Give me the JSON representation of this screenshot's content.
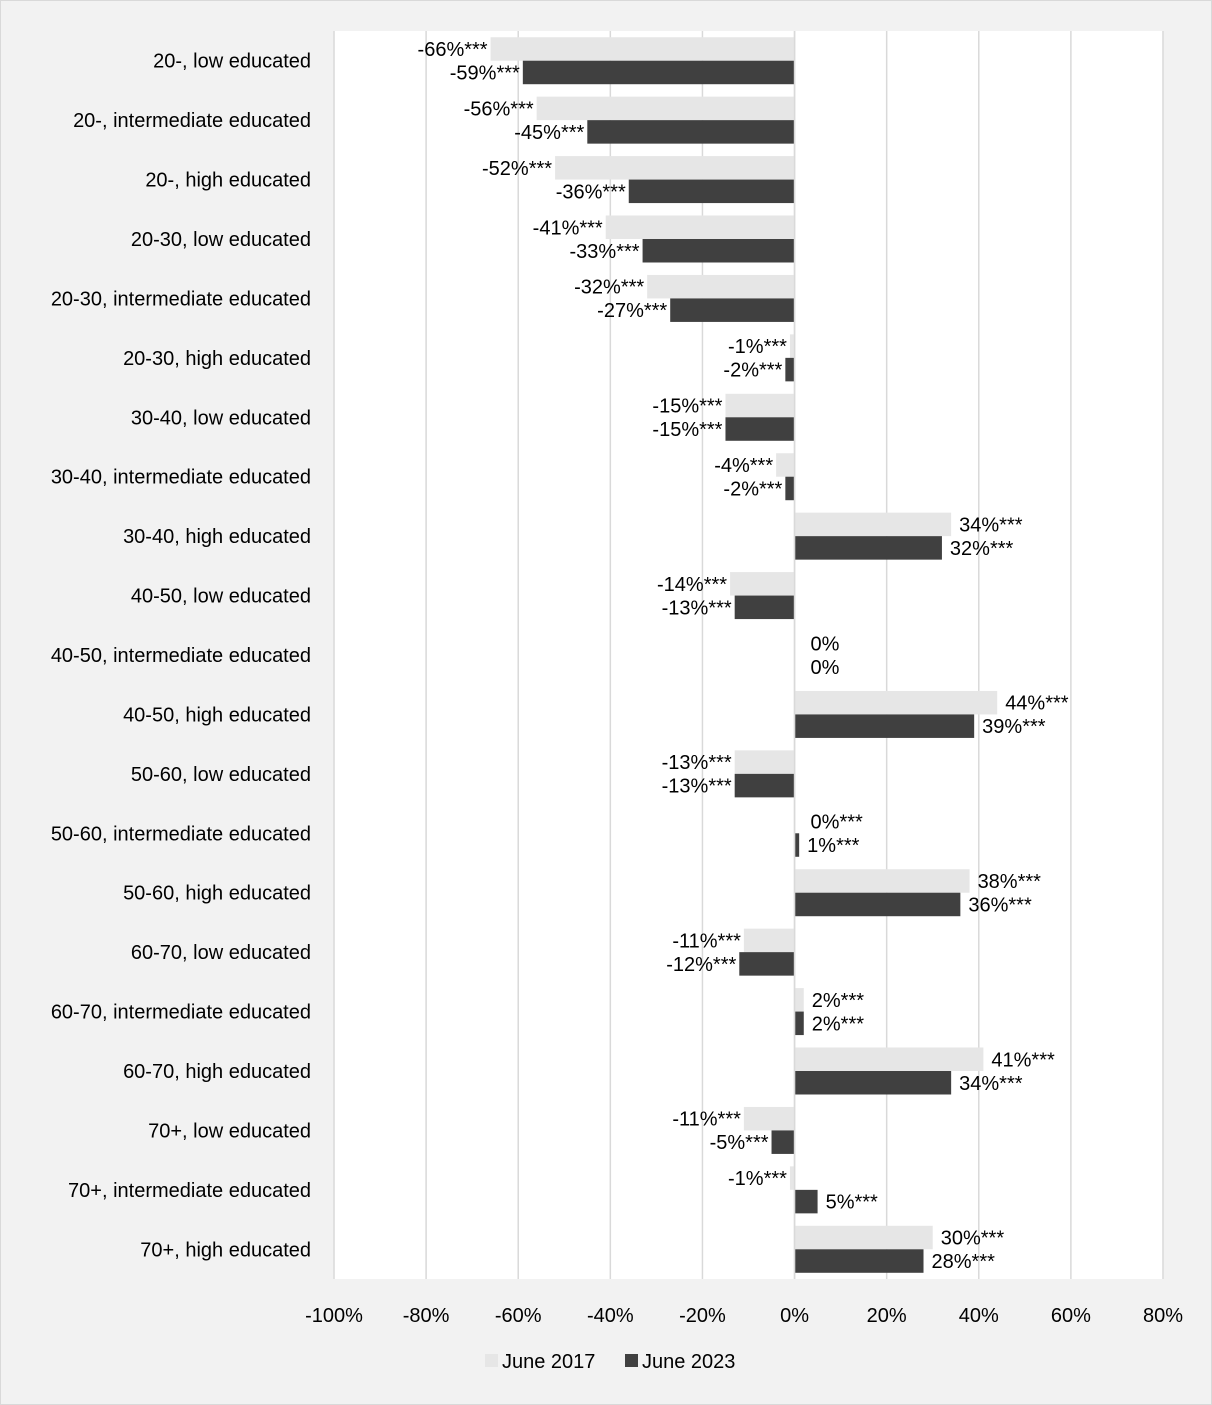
{
  "chart_data": {
    "type": "bar",
    "orientation": "horizontal",
    "title": "",
    "categories": [
      "20-, low educated",
      "20-, intermediate educated",
      "20-, high educated",
      "20-30, low educated",
      "20-30, intermediate educated",
      "20-30, high educated",
      "30-40, low educated",
      "30-40, intermediate educated",
      "30-40, high educated",
      "40-50, low educated",
      "40-50, intermediate educated",
      "40-50, high educated",
      "50-60, low educated",
      "50-60, intermediate educated",
      "50-60, high educated",
      "60-70, low educated",
      "60-70, intermediate educated",
      "60-70, high educated",
      "70+, low educated",
      "70+, intermediate educated",
      "70+, high educated"
    ],
    "series": [
      {
        "name": "June 2017",
        "color": "#e6e6e6",
        "values": [
          -66,
          -56,
          -52,
          -41,
          -32,
          -1,
          -15,
          -4,
          34,
          -14,
          0,
          44,
          -13,
          0,
          38,
          -11,
          2,
          41,
          -11,
          -1,
          30
        ],
        "labels": [
          "-66%***",
          "-56%***",
          "-52%***",
          "-41%***",
          "-32%***",
          "-1%***",
          "-15%***",
          "-4%***",
          "34%***",
          "-14%***",
          "0%",
          "44%***",
          "-13%***",
          "0%***",
          "38%***",
          "-11%***",
          "2%***",
          "41%***",
          "-11%***",
          "-1%***",
          "30%***"
        ]
      },
      {
        "name": "June 2023",
        "color": "#404040",
        "values": [
          -59,
          -45,
          -36,
          -33,
          -27,
          -2,
          -15,
          -2,
          32,
          -13,
          0,
          39,
          -13,
          1,
          36,
          -12,
          2,
          34,
          -5,
          5,
          28
        ],
        "labels": [
          "-59%***",
          "-45%***",
          "-36%***",
          "-33%***",
          "-27%***",
          "-2%***",
          "-15%***",
          "-2%***",
          "32%***",
          "-13%***",
          "0%",
          "39%***",
          "-13%***",
          "1%***",
          "36%***",
          "-12%***",
          "2%***",
          "34%***",
          "-5%***",
          "5%***",
          "28%***"
        ]
      }
    ],
    "xlim": [
      -100,
      80
    ],
    "xticks": [
      -100,
      -80,
      -60,
      -40,
      -20,
      0,
      20,
      40,
      60,
      80
    ],
    "xtick_labels": [
      "-100%",
      "-80%",
      "-60%",
      "-40%",
      "-20%",
      "0%",
      "20%",
      "40%",
      "60%",
      "80%"
    ],
    "xlabel": "",
    "ylabel": "",
    "grid": "vertical",
    "legend_position": "bottom"
  }
}
